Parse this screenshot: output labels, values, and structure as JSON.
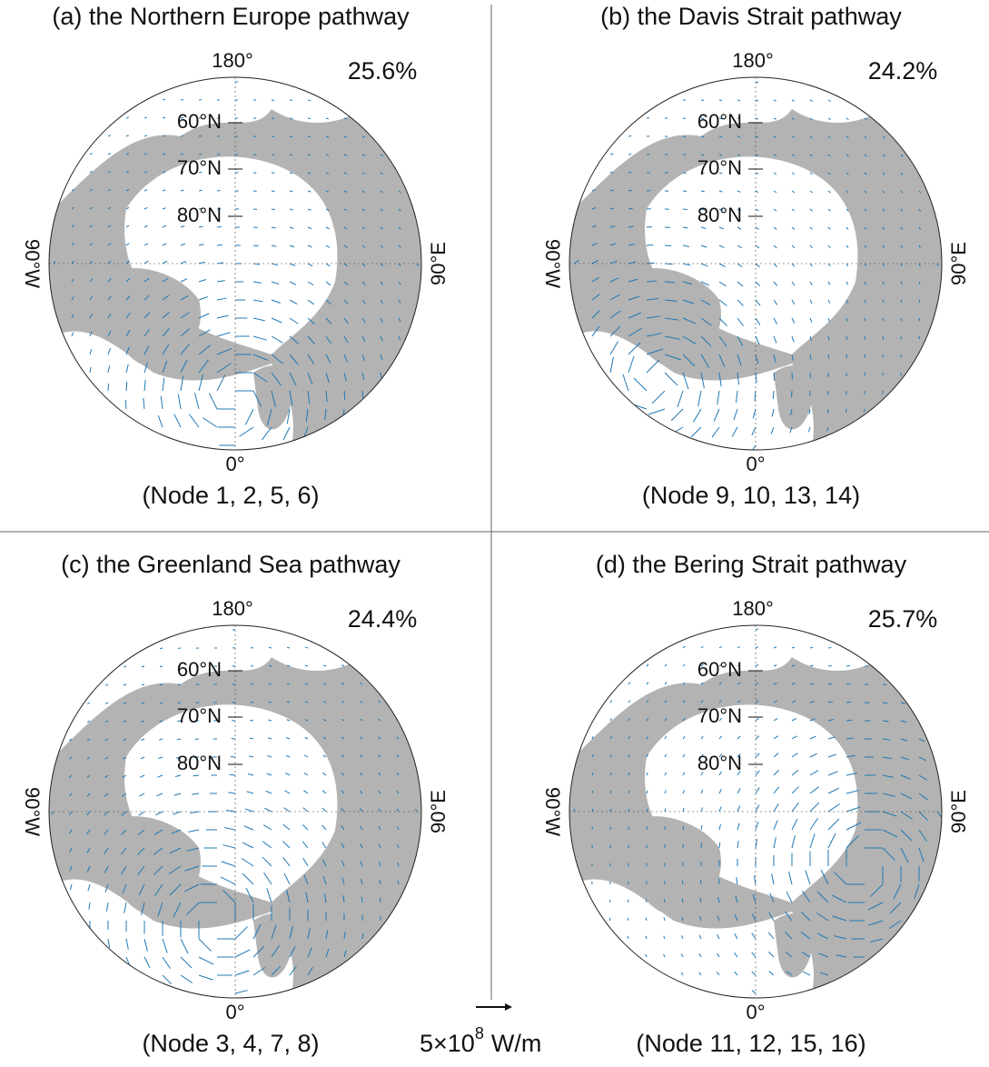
{
  "panels": [
    {
      "title": "(a) the Northern Europe pathway",
      "percent": "25.6%",
      "nodes": "(Node 1, 2, 5, 6)"
    },
    {
      "title": "(b) the Davis Strait pathway",
      "percent": "24.2%",
      "nodes": "(Node 9, 10, 13, 14)"
    },
    {
      "title": "(c) the Greenland Sea pathway",
      "percent": "24.4%",
      "nodes": "(Node 3, 4, 7, 8)"
    },
    {
      "title": "(d) the Bering Strait pathway",
      "percent": "25.7%",
      "nodes": "(Node 11, 12, 15, 16)"
    }
  ],
  "latitude_labels": [
    "60°N",
    "70°N",
    "80°N"
  ],
  "longitude_labels": {
    "top": "180°",
    "left": "90°W",
    "right": "90°E",
    "bottom": "0°"
  },
  "scale": {
    "base": "5×10",
    "exponent": "8",
    "unit": "W/m"
  }
}
